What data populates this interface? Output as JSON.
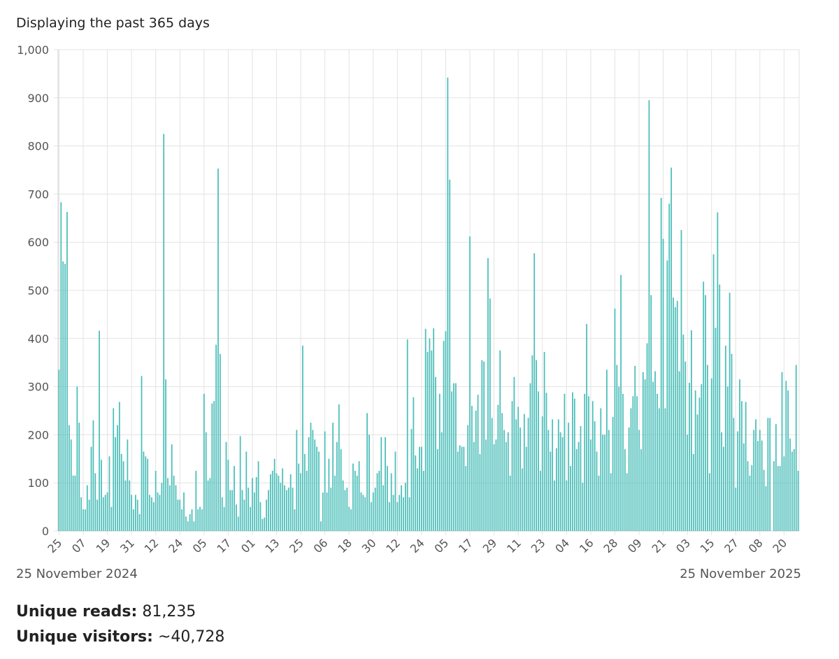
{
  "subtitle": "Displaying the past 365 days",
  "start_date": "25 November 2024",
  "end_date": "25 November 2025",
  "stats": {
    "reads_label": "Unique reads:",
    "reads_value": "81,235",
    "visitors_label": "Unique visitors:",
    "visitors_value": "~40,728"
  },
  "colors": {
    "bar": "#4dbfba",
    "grid": "#e3e3e3",
    "axis": "#555555"
  },
  "chart_data": {
    "type": "bar",
    "title": "",
    "xlabel": "",
    "ylabel": "",
    "ylim": [
      0,
      1000
    ],
    "y_ticks": [
      0,
      100,
      200,
      300,
      400,
      500,
      600,
      700,
      800,
      900,
      1000
    ],
    "y_tick_labels": [
      "0",
      "100",
      "200",
      "300",
      "400",
      "500",
      "600",
      "700",
      "800",
      "900",
      "1,000"
    ],
    "x_tick_labels": [
      "25",
      "07",
      "19",
      "31",
      "12",
      "24",
      "05",
      "17",
      "01",
      "13",
      "25",
      "06",
      "18",
      "30",
      "12",
      "24",
      "05",
      "17",
      "29",
      "11",
      "23",
      "04",
      "16",
      "28",
      "09",
      "21",
      "03",
      "15",
      "27",
      "08",
      "20"
    ],
    "x_tick_every": 12,
    "start_date": "2024-11-25",
    "values": [
      335,
      683,
      560,
      555,
      663,
      220,
      190,
      115,
      115,
      300,
      225,
      70,
      45,
      45,
      95,
      65,
      175,
      230,
      120,
      65,
      416,
      148,
      70,
      75,
      80,
      155,
      50,
      255,
      195,
      220,
      268,
      160,
      145,
      105,
      190,
      105,
      75,
      45,
      75,
      65,
      35,
      322,
      165,
      155,
      150,
      75,
      70,
      60,
      125,
      80,
      75,
      100,
      825,
      315,
      110,
      95,
      180,
      115,
      95,
      65,
      65,
      45,
      80,
      30,
      20,
      35,
      45,
      20,
      125,
      45,
      50,
      45,
      285,
      205,
      105,
      110,
      265,
      270,
      387,
      753,
      368,
      70,
      50,
      185,
      148,
      85,
      85,
      135,
      55,
      30,
      197,
      85,
      65,
      165,
      90,
      50,
      110,
      80,
      112,
      145,
      60,
      25,
      28,
      65,
      85,
      118,
      125,
      150,
      120,
      115,
      100,
      130,
      95,
      85,
      90,
      118,
      90,
      45,
      210,
      140,
      120,
      385,
      160,
      125,
      195,
      225,
      210,
      190,
      175,
      165,
      20,
      80,
      207,
      80,
      150,
      90,
      225,
      115,
      185,
      263,
      170,
      105,
      85,
      90,
      50,
      45,
      140,
      125,
      115,
      145,
      80,
      75,
      70,
      245,
      200,
      60,
      80,
      90,
      120,
      125,
      195,
      95,
      195,
      135,
      60,
      120,
      75,
      165,
      60,
      75,
      95,
      70,
      100,
      398,
      70,
      212,
      278,
      157,
      130,
      175,
      175,
      125,
      420,
      372,
      400,
      375,
      421,
      320,
      170,
      285,
      205,
      395,
      415,
      942,
      730,
      290,
      307,
      307,
      165,
      178,
      175,
      175,
      135,
      220,
      612,
      260,
      185,
      250,
      283,
      160,
      355,
      352,
      190,
      567,
      483,
      235,
      180,
      190,
      262,
      375,
      245,
      210,
      185,
      205,
      115,
      270,
      320,
      232,
      258,
      215,
      130,
      243,
      175,
      235,
      307,
      365,
      577,
      355,
      290,
      125,
      238,
      372,
      287,
      210,
      165,
      232,
      105,
      172,
      232,
      205,
      195,
      285,
      105,
      225,
      135,
      288,
      275,
      170,
      185,
      218,
      100,
      285,
      430,
      280,
      190,
      270,
      228,
      165,
      115,
      255,
      200,
      200,
      335,
      210,
      120,
      237,
      462,
      345,
      300,
      532,
      285,
      170,
      120,
      215,
      255,
      280,
      343,
      280,
      210,
      170,
      330,
      315,
      390,
      895,
      490,
      310,
      332,
      285,
      255,
      692,
      607,
      255,
      562,
      680,
      755,
      485,
      465,
      478,
      332,
      625,
      408,
      352,
      200,
      308,
      417,
      160,
      292,
      242,
      277,
      305,
      518,
      490,
      345,
      120,
      317,
      575,
      422,
      662,
      512,
      205,
      175,
      385,
      300,
      495,
      368,
      235,
      90,
      207,
      315,
      270,
      182,
      268,
      145,
      115,
      137,
      210,
      232,
      187,
      210,
      188,
      127,
      93,
      235,
      235,
      0,
      145,
      222,
      135,
      135,
      330,
      155,
      312,
      292,
      192,
      165,
      170,
      345,
      125
    ]
  }
}
